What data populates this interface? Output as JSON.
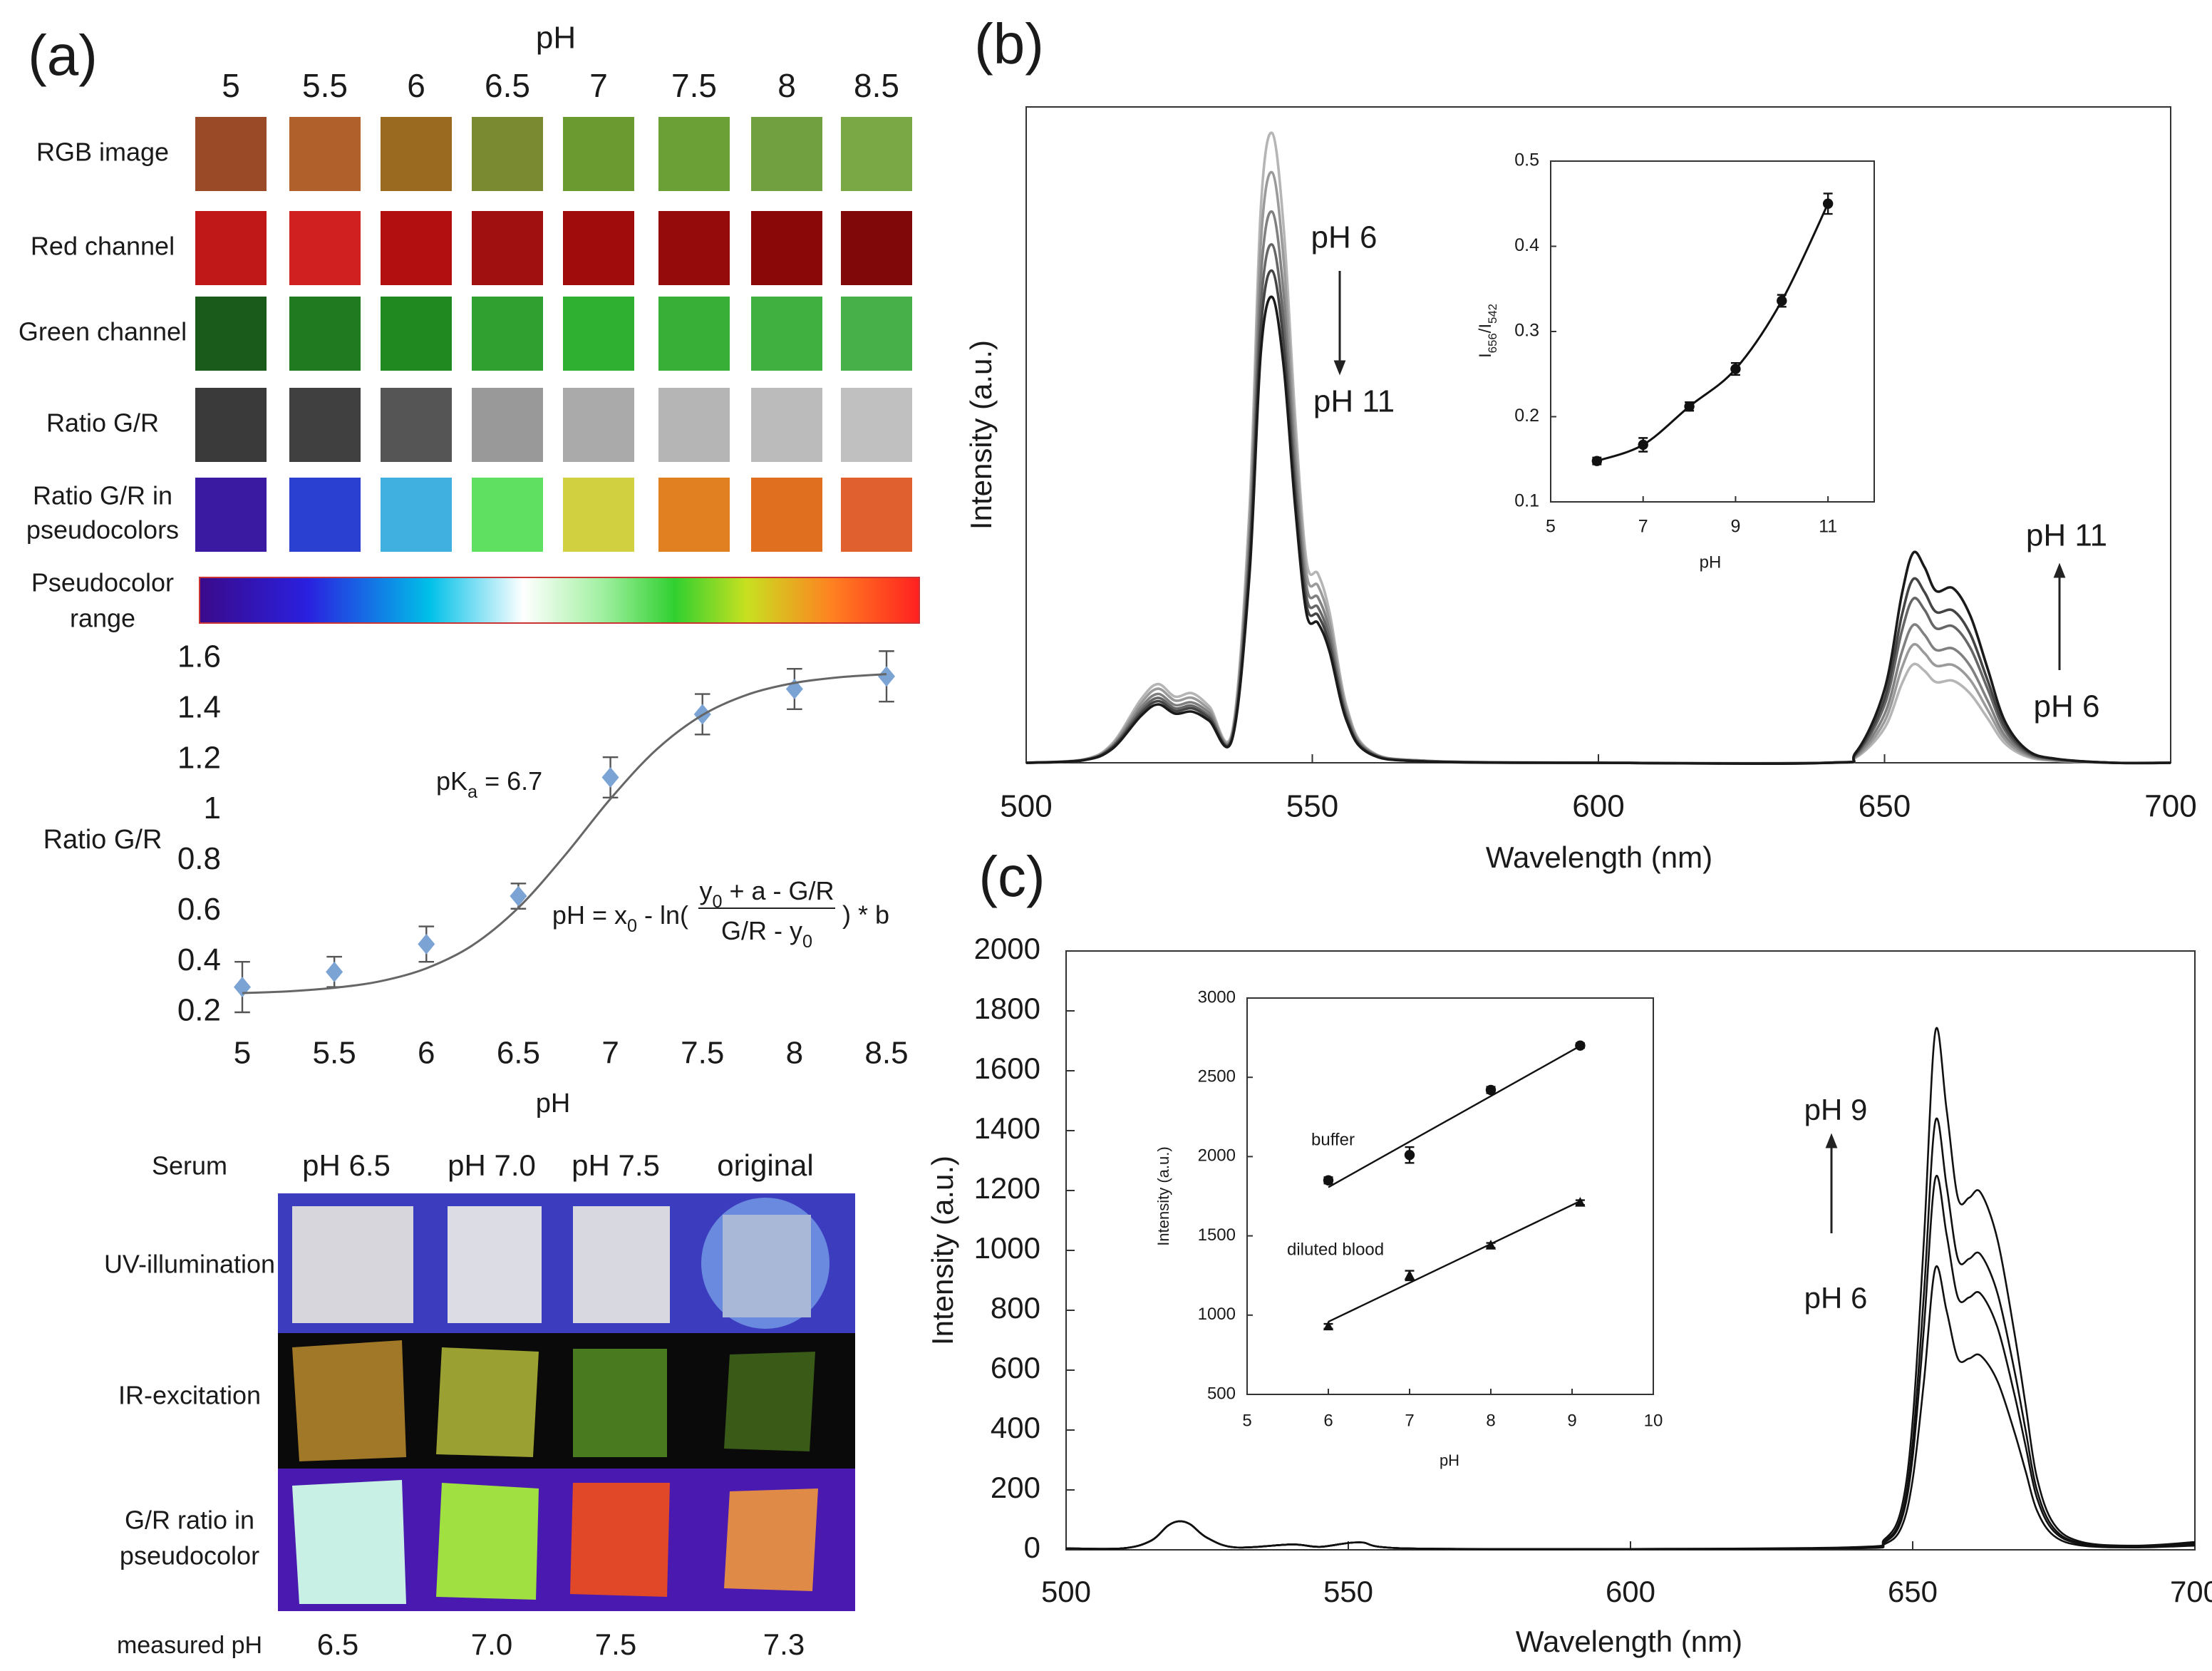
{
  "panel_labels": [
    "(a)",
    "(b)",
    "(c)"
  ],
  "ph_grid": {
    "title": "pH",
    "columns": [
      "5",
      "5.5",
      "6",
      "6.5",
      "7",
      "7.5",
      "8",
      "8.5"
    ],
    "rows": [
      [
        "RGB image"
      ],
      [
        "Red channel"
      ],
      [
        "Green channel"
      ],
      [
        "Ratio G/R"
      ],
      [
        "Ratio G/R in",
        "pseudocolors"
      ]
    ],
    "range_label": [
      "Pseudocolor",
      "range"
    ]
  },
  "serum": {
    "header": [
      "Serum",
      "pH 6.5",
      "pH 7.0",
      "pH 7.5",
      "original"
    ],
    "rows": [
      [
        "UV-illumination"
      ],
      [
        "IR-excitation"
      ],
      [
        "G/R ratio in",
        "pseudocolor"
      ]
    ],
    "measured": {
      "label": "measured pH",
      "values": [
        "6.5",
        "7.0",
        "7.5",
        "7.3"
      ]
    }
  },
  "chart_data": [
    {
      "type": "scatter",
      "frame": false,
      "xlabel": "pH",
      "ylabel": "Ratio G/R",
      "xlim": [
        5,
        8.5
      ],
      "ylim": [
        0.2,
        1.6
      ],
      "xticks": [
        5,
        5.5,
        6,
        6.5,
        7,
        7.5,
        8,
        8.5
      ],
      "yticks": [
        0.2,
        0.4,
        0.6,
        0.8,
        1,
        1.2,
        1.4,
        1.6
      ],
      "series": [
        {
          "color": "#7ba3d4",
          "marker": "diamond",
          "x": [
            5,
            5.5,
            6,
            6.5,
            7,
            7.5,
            8,
            8.5
          ],
          "values": [
            0.3,
            0.36,
            0.47,
            0.66,
            1.13,
            1.38,
            1.48,
            1.53
          ],
          "errors": [
            0.1,
            0.06,
            0.07,
            0.05,
            0.08,
            0.08,
            0.08,
            0.1
          ]
        },
        {
          "color": "#666666",
          "line": true,
          "x": [
            5,
            5.25,
            5.5,
            5.75,
            6,
            6.25,
            6.5,
            6.75,
            7,
            7.25,
            7.5,
            7.75,
            8,
            8.25,
            8.5
          ],
          "values": [
            0.276,
            0.283,
            0.297,
            0.323,
            0.374,
            0.465,
            0.614,
            0.819,
            1.045,
            1.24,
            1.377,
            1.459,
            1.504,
            1.527,
            1.539
          ]
        }
      ],
      "annotations": {
        "pka": [
          "pK",
          "a",
          " = 6.7"
        ],
        "formula": {
          "lead": [
            "pH = x",
            "0",
            " - ln( "
          ],
          "numerator": [
            "y",
            "0",
            " + a - G/R"
          ],
          "denominator": [
            "G/R - y",
            "0"
          ],
          "tail": " ) * b"
        }
      }
    },
    {
      "type": "line",
      "frame": true,
      "xlabel": "Wavelength (nm)",
      "ylabel": "Intensity (a.u.)",
      "xlim": [
        500,
        700
      ],
      "ylim": [
        0,
        1
      ],
      "xticks": [
        500,
        550,
        600,
        650,
        700
      ],
      "x": [
        500,
        510,
        515,
        520,
        523,
        526,
        529,
        532,
        536,
        539,
        541,
        543,
        545,
        547,
        549,
        551,
        553,
        556,
        560,
        570,
        600,
        640,
        645,
        650,
        653,
        655,
        657,
        659,
        662,
        665,
        668,
        671,
        675,
        680,
        690,
        700
      ],
      "series": [
        {
          "color": "#b5b5b5",
          "values": [
            0,
            0.005,
            0.029,
            0.096,
            0.12,
            0.101,
            0.106,
            0.086,
            0.048,
            0.384,
            0.845,
            0.96,
            0.816,
            0.528,
            0.307,
            0.288,
            0.23,
            0.086,
            0.019,
            0.003,
            0,
            0,
            0.008,
            0.053,
            0.12,
            0.15,
            0.14,
            0.123,
            0.125,
            0.105,
            0.068,
            0.03,
            0.009,
            0.003,
            0,
            0
          ]
        },
        {
          "color": "#9a9a9a",
          "values": [
            0,
            0.005,
            0.027,
            0.09,
            0.113,
            0.095,
            0.099,
            0.081,
            0.045,
            0.36,
            0.792,
            0.9,
            0.765,
            0.495,
            0.288,
            0.27,
            0.216,
            0.081,
            0.018,
            0.003,
            0,
            0,
            0.009,
            0.063,
            0.144,
            0.18,
            0.167,
            0.148,
            0.149,
            0.126,
            0.081,
            0.036,
            0.011,
            0.004,
            0,
            0
          ]
        },
        {
          "color": "#808080",
          "values": [
            0,
            0.004,
            0.025,
            0.084,
            0.105,
            0.088,
            0.092,
            0.076,
            0.042,
            0.336,
            0.739,
            0.84,
            0.714,
            0.462,
            0.269,
            0.252,
            0.202,
            0.076,
            0.017,
            0.003,
            0,
            0,
            0.011,
            0.074,
            0.168,
            0.21,
            0.195,
            0.172,
            0.174,
            0.147,
            0.095,
            0.042,
            0.013,
            0.004,
            0,
            0
          ]
        },
        {
          "color": "#666666",
          "values": [
            0,
            0.004,
            0.024,
            0.079,
            0.099,
            0.083,
            0.087,
            0.071,
            0.04,
            0.316,
            0.695,
            0.79,
            0.672,
            0.435,
            0.253,
            0.237,
            0.19,
            0.071,
            0.016,
            0.002,
            0,
            0,
            0.013,
            0.088,
            0.2,
            0.25,
            0.233,
            0.205,
            0.208,
            0.175,
            0.113,
            0.05,
            0.015,
            0.005,
            0,
            0
          ]
        },
        {
          "color": "#444444",
          "values": [
            0,
            0.004,
            0.023,
            0.075,
            0.094,
            0.079,
            0.083,
            0.068,
            0.038,
            0.3,
            0.66,
            0.75,
            0.638,
            0.413,
            0.24,
            0.225,
            0.18,
            0.068,
            0.015,
            0.002,
            0,
            0,
            0.014,
            0.098,
            0.224,
            0.28,
            0.26,
            0.23,
            0.232,
            0.196,
            0.126,
            0.056,
            0.017,
            0.006,
            0,
            0
          ]
        },
        {
          "color": "#1a1a1a",
          "values": [
            0,
            0.004,
            0.021,
            0.071,
            0.089,
            0.075,
            0.078,
            0.064,
            0.036,
            0.284,
            0.625,
            0.71,
            0.604,
            0.391,
            0.227,
            0.213,
            0.17,
            0.064,
            0.014,
            0.002,
            0,
            0,
            0.016,
            0.112,
            0.256,
            0.32,
            0.298,
            0.262,
            0.266,
            0.224,
            0.144,
            0.064,
            0.019,
            0.006,
            0,
            0
          ]
        }
      ],
      "annotations": [
        "pH 6",
        "pH 11",
        "pH 11",
        "pH 6"
      ]
    },
    {
      "type": "scatter",
      "frame": true,
      "xlabel": "pH",
      "ylabel": [
        "I",
        "656",
        "/I",
        "542"
      ],
      "xlim": [
        5,
        12
      ],
      "ylim": [
        0.1,
        0.5
      ],
      "xticks": [
        5,
        7,
        9,
        11
      ],
      "yticks": [
        0.1,
        0.2,
        0.3,
        0.4,
        0.5
      ],
      "series": [
        {
          "color": "#111111",
          "marker": "circle",
          "line": true,
          "x": [
            6,
            7,
            8,
            9,
            10,
            11
          ],
          "values": [
            0.148,
            0.167,
            0.212,
            0.256,
            0.336,
            0.45
          ],
          "errors": [
            0.004,
            0.008,
            0.005,
            0.007,
            0.007,
            0.012
          ]
        }
      ]
    },
    {
      "type": "line",
      "frame": true,
      "xlabel": "Wavelength (nm)",
      "ylabel": "Intensity (a.u.)",
      "xlim": [
        500,
        700
      ],
      "ylim": [
        0,
        2000
      ],
      "xticks": [
        500,
        550,
        600,
        650,
        700
      ],
      "yticks": [
        0,
        200,
        400,
        600,
        800,
        1000,
        1200,
        1400,
        1600,
        1800,
        2000
      ],
      "x": [
        500,
        510,
        515,
        518,
        520,
        522,
        525,
        530,
        540,
        545,
        552,
        560,
        600,
        640,
        645,
        648,
        650,
        652,
        654,
        656,
        658,
        660,
        662,
        665,
        668,
        670,
        672,
        675,
        680,
        690,
        700
      ],
      "series": [
        {
          "color": "#111111",
          "values": [
            5,
            5,
            30,
            80,
            95,
            85,
            40,
            8,
            18,
            10,
            25,
            5,
            3,
            9,
            35,
            138,
            433,
            1038,
            1730,
            1471,
            1176,
            1176,
            1194,
            1038,
            727,
            484,
            242,
            87,
            26,
            14,
            26
          ]
        },
        {
          "color": "#111111",
          "values": [
            5,
            5,
            30,
            80,
            95,
            85,
            40,
            8,
            18,
            10,
            25,
            5,
            3,
            7,
            29,
            114,
            358,
            858,
            1430,
            1216,
            972,
            972,
            987,
            858,
            601,
            400,
            200,
            72,
            21,
            11,
            21
          ]
        },
        {
          "color": "#111111",
          "values": [
            5,
            5,
            30,
            80,
            95,
            85,
            40,
            8,
            18,
            10,
            25,
            5,
            3,
            6,
            25,
            99,
            310,
            744,
            1240,
            1054,
            843,
            843,
            856,
            744,
            521,
            347,
            174,
            62,
            19,
            10,
            19
          ]
        },
        {
          "color": "#111111",
          "values": [
            5,
            5,
            30,
            80,
            95,
            85,
            40,
            8,
            18,
            10,
            25,
            5,
            3,
            5,
            19,
            75,
            235,
            564,
            940,
            799,
            639,
            639,
            649,
            564,
            395,
            263,
            132,
            47,
            14,
            8,
            14
          ]
        }
      ],
      "annotations": [
        "pH 9",
        "pH 6"
      ]
    },
    {
      "type": "scatter",
      "frame": true,
      "xlabel": "pH",
      "ylabel": "Intensity (a.u.)",
      "xlim": [
        5,
        10
      ],
      "ylim": [
        500,
        3000
      ],
      "xticks": [
        5,
        6,
        7,
        8,
        9,
        10
      ],
      "yticks": [
        500,
        1000,
        1500,
        2000,
        2500,
        3000
      ],
      "series": [
        {
          "name": "buffer",
          "color": "#111111",
          "marker": "circle",
          "fit": "linear",
          "x": [
            6,
            7,
            8,
            9.1
          ],
          "values": [
            1850,
            2010,
            2420,
            2700
          ],
          "errors": [
            20,
            50,
            20,
            15
          ]
        },
        {
          "name": "diluted blood",
          "color": "#111111",
          "marker": "triangle",
          "fit": "linear",
          "x": [
            6,
            7,
            8,
            9.1
          ],
          "values": [
            930,
            1250,
            1440,
            1710
          ],
          "errors": [
            15,
            30,
            15,
            15
          ]
        }
      ]
    }
  ]
}
